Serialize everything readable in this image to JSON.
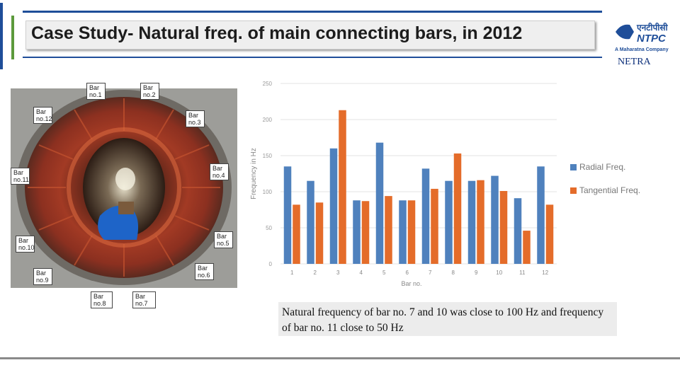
{
  "header": {
    "title": "Case Study- Natural freq. of main connecting bars, in 2012"
  },
  "logo": {
    "hindi_text": "एनटीपीसी",
    "text": "NTPC",
    "tagline": "A Maharatna Company",
    "sub": "NETRA"
  },
  "photo": {
    "callouts": [
      {
        "line1": "Bar",
        "line2": "no.1"
      },
      {
        "line1": "Bar",
        "line2": "no.2"
      },
      {
        "line1": "Bar",
        "line2": "no.12"
      },
      {
        "line1": "Bar",
        "line2": "no.3"
      },
      {
        "line1": "Bar",
        "line2": "no.11"
      },
      {
        "line1": "Bar",
        "line2": "no.4"
      },
      {
        "line1": "Bar",
        "line2": "no.10"
      },
      {
        "line1": "Bar",
        "line2": "no.5"
      },
      {
        "line1": "Bar",
        "line2": "no.6"
      },
      {
        "line1": "Bar",
        "line2": "no.9"
      },
      {
        "line1": "Bar",
        "line2": "no.8"
      },
      {
        "line1": "Bar",
        "line2": "no.7"
      }
    ]
  },
  "chart_data": {
    "type": "bar",
    "categories": [
      "1",
      "2",
      "3",
      "4",
      "5",
      "6",
      "7",
      "8",
      "9",
      "10",
      "11",
      "12"
    ],
    "series": [
      {
        "name": "Radial Freq.",
        "color": "#4f81bd",
        "values": [
          135,
          115,
          160,
          88,
          168,
          88,
          132,
          115,
          115,
          122,
          91,
          135
        ]
      },
      {
        "name": "Tangential Freq.",
        "color": "#e46c2a",
        "values": [
          82,
          85,
          213,
          87,
          94,
          88,
          104,
          153,
          116,
          101,
          46,
          82
        ]
      }
    ],
    "xlabel": "Bar no.",
    "ylabel": "Frequency in Hz",
    "ylim": [
      0,
      250
    ],
    "yticks": [
      0,
      50,
      100,
      150,
      200,
      250
    ],
    "grid": true,
    "legend": "right"
  },
  "note": {
    "text": "Natural frequency of bar no. 7 and 10 was close to 100 Hz and frequency of bar no. 11 close to 50 Hz"
  }
}
